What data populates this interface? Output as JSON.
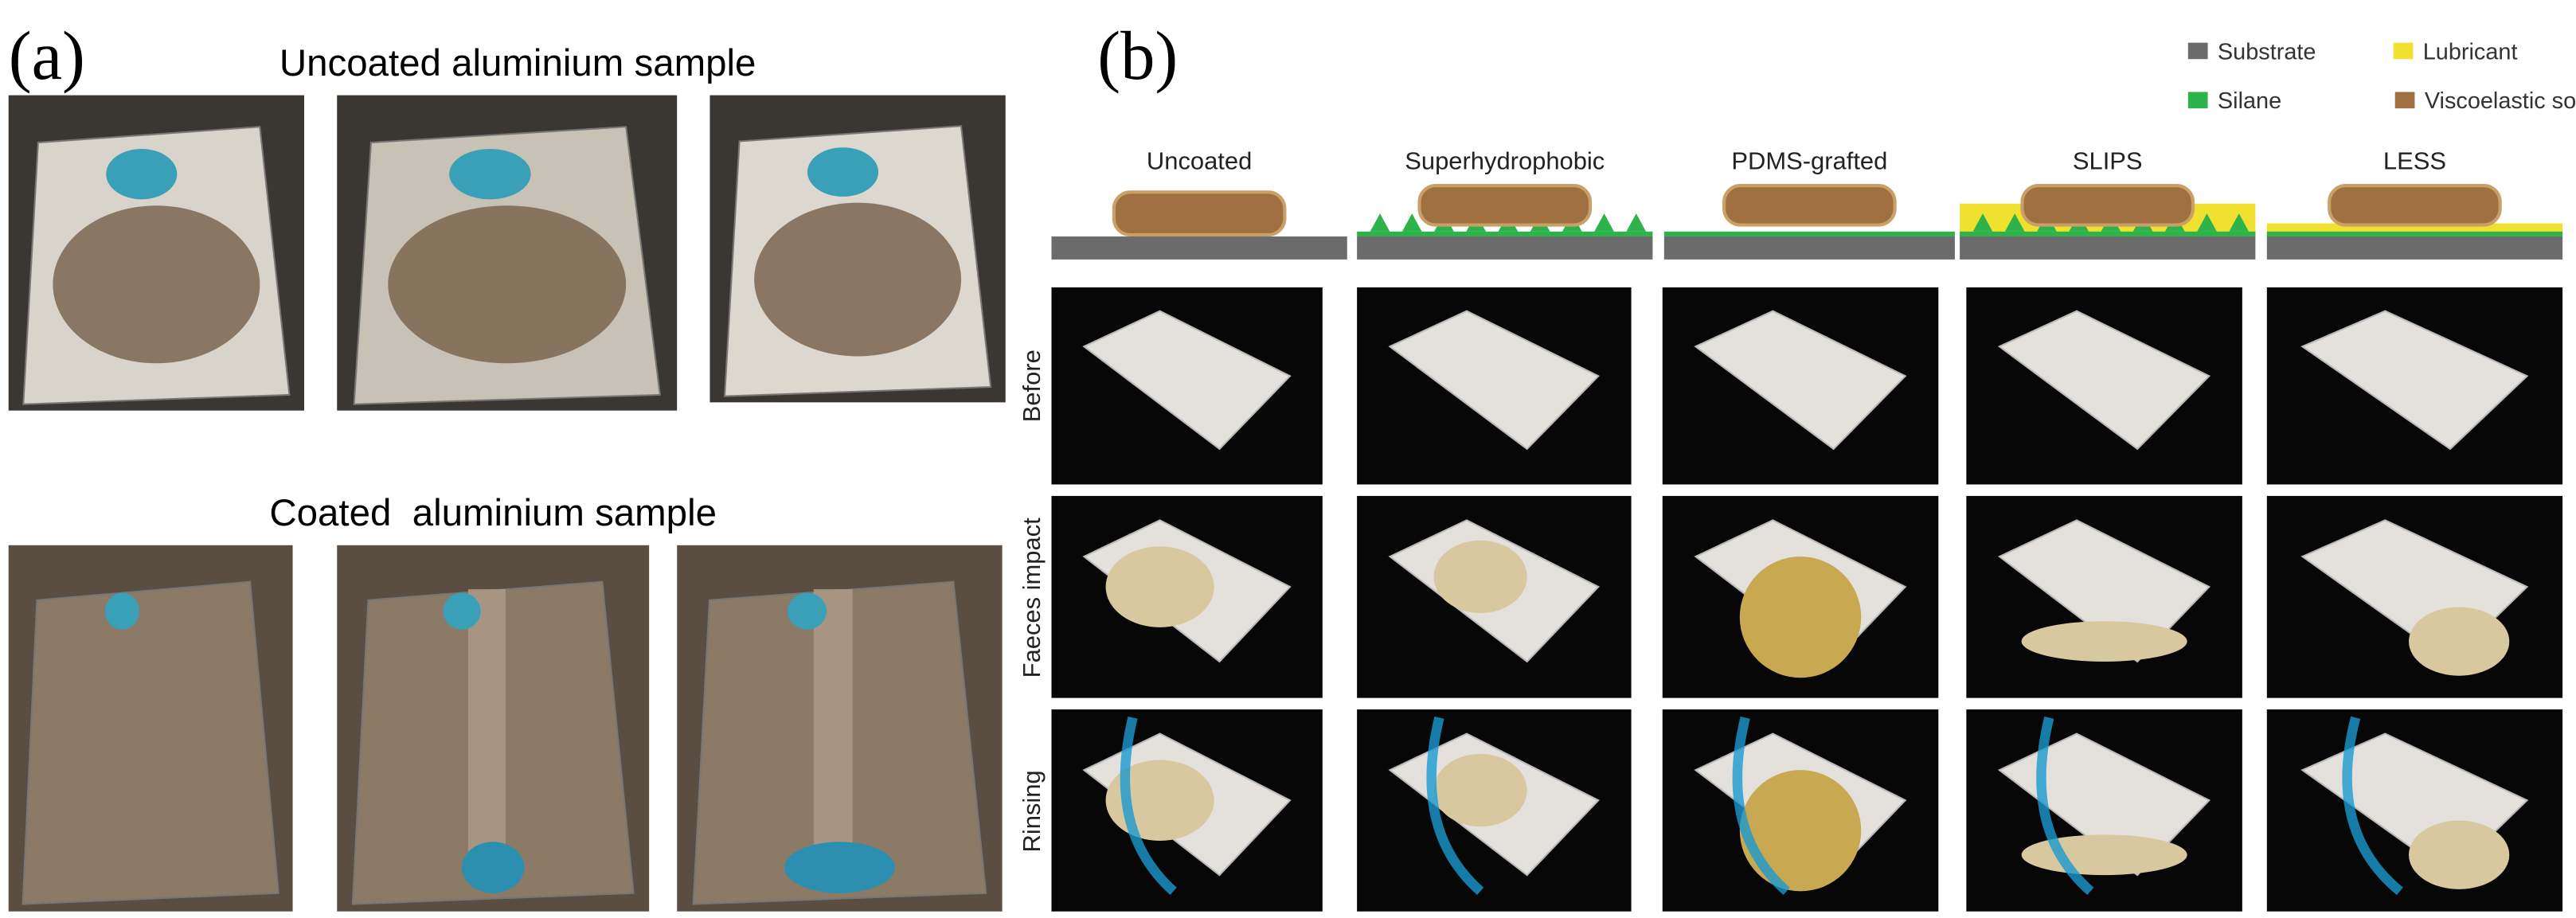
{
  "panel_a": {
    "label": "(a)",
    "uncoated_title": "Uncoated aluminium sample",
    "coated_title": "Coated  aluminium sample"
  },
  "panel_b": {
    "label": "(b)",
    "legend": [
      "Substrate",
      "Lubricant",
      "Silane",
      "Viscoelastic solid"
    ],
    "columns": [
      "Uncoated",
      "Superhydrophobic",
      "PDMS-grafted",
      "SLIPS",
      "LESS"
    ],
    "rows": [
      "Before",
      "Faeces impact",
      "Rinsing"
    ]
  }
}
